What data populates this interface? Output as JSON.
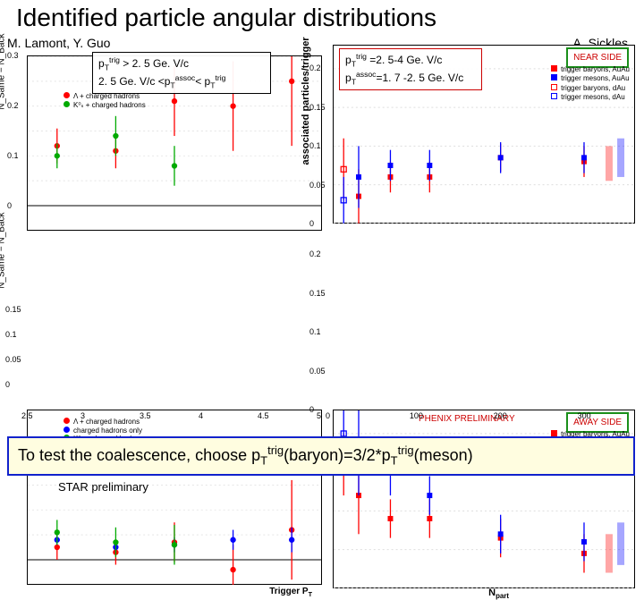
{
  "title": "Identified particle angular distributions",
  "authors": {
    "left": "M. Lamont, Y. Guo",
    "right": "A. Sickles"
  },
  "left_textbox": {
    "line1_pre": "p",
    "line1_sub": "T",
    "line1_sup": "trig",
    "line1_post": " > 2. 5 Ge. V/c",
    "line2_pre": "2. 5 Ge. V/c <p",
    "line2_sub": "T",
    "line2_sup": "assoc",
    "line2_post": "< p",
    "line2_sub2": "T",
    "line2_sup2": "trig"
  },
  "right_textbox": {
    "line1_pre": "p",
    "line1_sub": "T",
    "line1_sup": "trig",
    "line1_post": " =2. 5-4 Ge. V/c",
    "line2_pre": "p",
    "line2_sub": "T",
    "line2_sup": "assoc",
    "line2_post": "=1. 7 -2. 5 Ge. V/c"
  },
  "star_prelim": "STAR preliminary",
  "phenix_prelim": "PHENIX PRELIMINARY",
  "near_side": "NEAR SIDE",
  "away_side": "AWAY SIDE",
  "left_legend_top": {
    "items": [
      {
        "symbol": "circle",
        "color": "#ff0000",
        "label": "Λ + charged hadrons"
      },
      {
        "symbol": "circle",
        "color": "#00aa00",
        "label": "K⁰ₛ + charged hadrons"
      }
    ]
  },
  "left_legend_bottom": {
    "items": [
      {
        "symbol": "circle",
        "color": "#ff0000",
        "label": "Λ + charged hadrons"
      },
      {
        "symbol": "circle",
        "color": "#0000ff",
        "label": "charged hadrons only"
      },
      {
        "symbol": "circle",
        "color": "#00aa00",
        "label": "K⁰ₛ + charged hadrons"
      }
    ]
  },
  "right_legend": {
    "items": [
      {
        "symbol": "sq-fill",
        "color": "#ff0000",
        "label": "trigger baryons, AuAu"
      },
      {
        "symbol": "sq-fill",
        "color": "#0000ff",
        "label": "trigger mesons, AuAu"
      },
      {
        "symbol": "sq-open",
        "color": "#ff0000",
        "label": "trigger baryons, dAu"
      },
      {
        "symbol": "sq-open",
        "color": "#0000ff",
        "label": "trigger mesons, dAu"
      }
    ]
  },
  "left_top_chart": {
    "type": "scatter",
    "xlim": [
      2.5,
      5.0
    ],
    "ylim": [
      -0.05,
      0.3
    ],
    "yticks": [
      0,
      0.05,
      0.1,
      0.15,
      0.2,
      0.25,
      0.3
    ],
    "series": [
      {
        "color": "#ff0000",
        "points": [
          [
            2.75,
            0.12,
            0.035
          ],
          [
            3.25,
            0.11,
            0.035
          ],
          [
            3.75,
            0.21,
            0.07
          ],
          [
            4.25,
            0.2,
            0.09
          ],
          [
            4.75,
            0.25,
            0.13
          ]
        ]
      },
      {
        "color": "#00aa00",
        "points": [
          [
            2.75,
            0.1,
            0.025
          ],
          [
            3.25,
            0.14,
            0.04
          ],
          [
            3.75,
            0.08,
            0.04
          ]
        ]
      }
    ],
    "grid_color": "#e5e5e5"
  },
  "left_bottom_chart": {
    "type": "scatter",
    "xlim": [
      2.5,
      5.0
    ],
    "ylim": [
      -0.05,
      0.3
    ],
    "yticks": [
      0,
      0.05,
      0.1,
      0.15
    ],
    "series": [
      {
        "color": "#ff0000",
        "points": [
          [
            2.75,
            0.025,
            0.025
          ],
          [
            3.25,
            0.015,
            0.025
          ],
          [
            3.75,
            0.035,
            0.04
          ],
          [
            4.25,
            -0.02,
            0.05
          ],
          [
            4.75,
            0.06,
            0.1
          ]
        ]
      },
      {
        "color": "#0000ff",
        "points": [
          [
            2.75,
            0.04,
            0.01
          ],
          [
            3.25,
            0.025,
            0.01
          ],
          [
            3.75,
            0.03,
            0.015
          ],
          [
            4.25,
            0.04,
            0.02
          ],
          [
            4.75,
            0.04,
            0.025
          ]
        ]
      },
      {
        "color": "#00aa00",
        "points": [
          [
            2.75,
            0.055,
            0.025
          ],
          [
            3.25,
            0.035,
            0.03
          ],
          [
            3.75,
            0.03,
            0.04
          ]
        ]
      }
    ],
    "xticks": [
      2.5,
      3,
      3.5,
      4,
      4.5,
      5
    ],
    "xlabel": "Trigger P_T",
    "grid_color": "#e5e5e5"
  },
  "left_ylabel": "N_Same − N_Back",
  "right_top_chart": {
    "type": "scatter",
    "xlim": [
      0,
      360
    ],
    "ylim": [
      0,
      0.23
    ],
    "yticks": [
      0,
      0.05,
      0.1,
      0.15,
      0.2
    ],
    "xticks": [
      0,
      100,
      200,
      300
    ],
    "series": [
      {
        "color": "#ff0000",
        "fill": true,
        "points": [
          [
            30,
            0.035,
            0.035
          ],
          [
            68,
            0.06,
            0.02
          ],
          [
            115,
            0.06,
            0.02
          ],
          [
            200,
            0.085,
            0.018
          ],
          [
            300,
            0.08,
            0.02
          ]
        ]
      },
      {
        "color": "#0000ff",
        "fill": true,
        "points": [
          [
            30,
            0.06,
            0.04
          ],
          [
            68,
            0.075,
            0.02
          ],
          [
            115,
            0.075,
            0.02
          ],
          [
            200,
            0.085,
            0.02
          ],
          [
            300,
            0.085,
            0.02
          ]
        ]
      },
      {
        "color": "#ff0000",
        "fill": false,
        "points": [
          [
            12,
            0.07,
            0.04
          ]
        ]
      },
      {
        "color": "#0000ff",
        "fill": false,
        "points": [
          [
            12,
            0.03,
            0.03
          ]
        ]
      }
    ],
    "bands": [
      {
        "color": "#ff0000",
        "x": 330,
        "ylo": 0.055,
        "yhi": 0.1
      },
      {
        "color": "#0000ff",
        "x": 344,
        "ylo": 0.06,
        "yhi": 0.11
      }
    ]
  },
  "right_bottom_chart": {
    "type": "scatter",
    "xlim": [
      0,
      360
    ],
    "ylim": [
      0,
      0.23
    ],
    "yticks": [
      0,
      0.05,
      0.1,
      0.15,
      0.2
    ],
    "xticks": [
      0,
      100,
      200,
      300
    ],
    "xlabel": "N_part",
    "series": [
      {
        "color": "#ff0000",
        "fill": true,
        "points": [
          [
            30,
            0.12,
            0.05
          ],
          [
            68,
            0.09,
            0.025
          ],
          [
            115,
            0.09,
            0.025
          ],
          [
            200,
            0.065,
            0.025
          ],
          [
            300,
            0.045,
            0.025
          ]
        ]
      },
      {
        "color": "#0000ff",
        "fill": true,
        "points": [
          [
            30,
            0.18,
            0.06
          ],
          [
            68,
            0.15,
            0.03
          ],
          [
            115,
            0.12,
            0.025
          ],
          [
            200,
            0.07,
            0.025
          ],
          [
            300,
            0.06,
            0.025
          ]
        ]
      },
      {
        "color": "#ff0000",
        "fill": false,
        "points": [
          [
            12,
            0.16,
            0.04
          ]
        ]
      },
      {
        "color": "#0000ff",
        "fill": false,
        "points": [
          [
            12,
            0.2,
            0.04
          ]
        ]
      }
    ],
    "bands": [
      {
        "color": "#ff0000",
        "x": 330,
        "ylo": 0.02,
        "yhi": 0.07
      },
      {
        "color": "#0000ff",
        "x": 344,
        "ylo": 0.03,
        "yhi": 0.085
      }
    ]
  },
  "right_ylabel": "associated particles/trigger",
  "footer": {
    "pre": "To test the coalescence, choose p",
    "sub1": "T",
    "sup1": "trig",
    "mid1": "(baryon)=3/2*p",
    "sub2": "T",
    "sup2": "trig",
    "post": "(meson)"
  },
  "colors": {
    "box_red": "#c00000",
    "box_green": "#1a8f1a",
    "box_blue": "#1122cc",
    "footer_bg": "#fffde0"
  }
}
